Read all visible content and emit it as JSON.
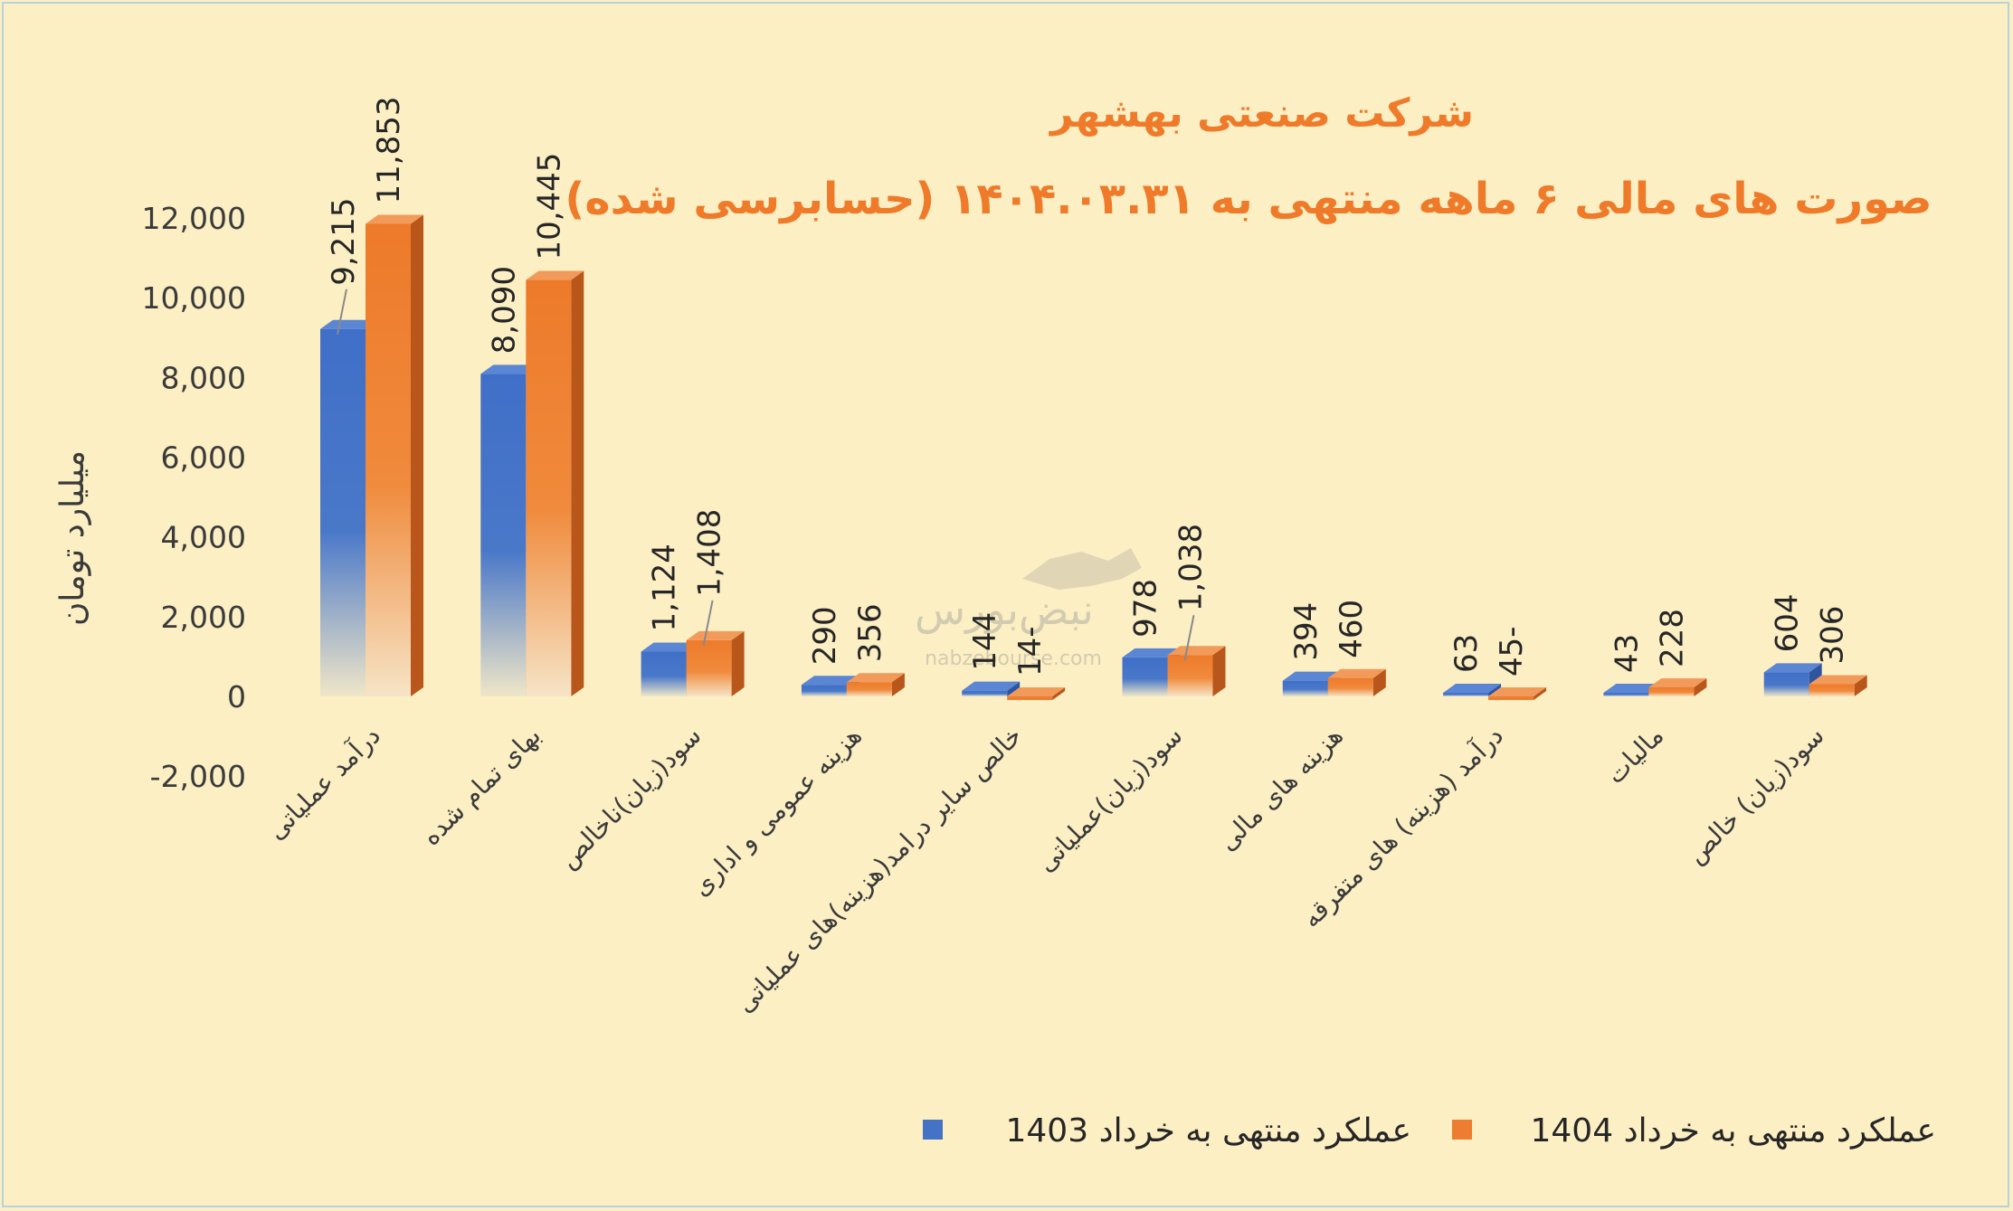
{
  "chart_data": {
    "type": "bar",
    "title": "شرکت صنعتی بهشهر",
    "subtitle": "صورت های مالی ۶ ماهه منتهی به ۱۴۰۴.۰۳.۳۱ (حسابرسی شده)",
    "ylabel": "میلیارد تومان",
    "ylim": [
      -2000,
      12000
    ],
    "yticks": [
      "-2,000",
      "0",
      "2,000",
      "4,000",
      "6,000",
      "8,000",
      "10,000",
      "12,000"
    ],
    "categories": [
      "درآمد عملیاتی",
      "بهای تمام شده",
      "سود(زیان)ناخالص",
      "هزینه عمومی و اداری",
      "خالص سایر درامد(هزینه)های عملیاتی",
      "سود(زیان)عملیاتی",
      "هزینه های مالی",
      "درآمد (هزینه) های متفرقه",
      "مالیات",
      "سود(زیان) خالص"
    ],
    "series": [
      {
        "name": "عملکرد منتهی به خرداد 1403",
        "color": "#4472c4",
        "values": [
          9215,
          8090,
          1124,
          290,
          144,
          978,
          394,
          63,
          43,
          604
        ],
        "labels": [
          "9,215",
          "8,090",
          "1,124",
          "290",
          "144",
          "978",
          "394",
          "63",
          "43",
          "604"
        ]
      },
      {
        "name": "عملکرد منتهی به خرداد 1404",
        "color": "#ed7d31",
        "values": [
          11853,
          10445,
          1408,
          356,
          -14,
          1038,
          460,
          -45,
          228,
          306
        ],
        "labels": [
          "11,853",
          "10,445",
          "1,408",
          "356",
          "14-",
          "1,038",
          "460",
          "45-",
          "228",
          "306"
        ]
      }
    ],
    "legend": "bottom-right",
    "grid": false
  },
  "watermark": {
    "text": "نبض‌بورس",
    "url": "nabzebourse.com"
  }
}
